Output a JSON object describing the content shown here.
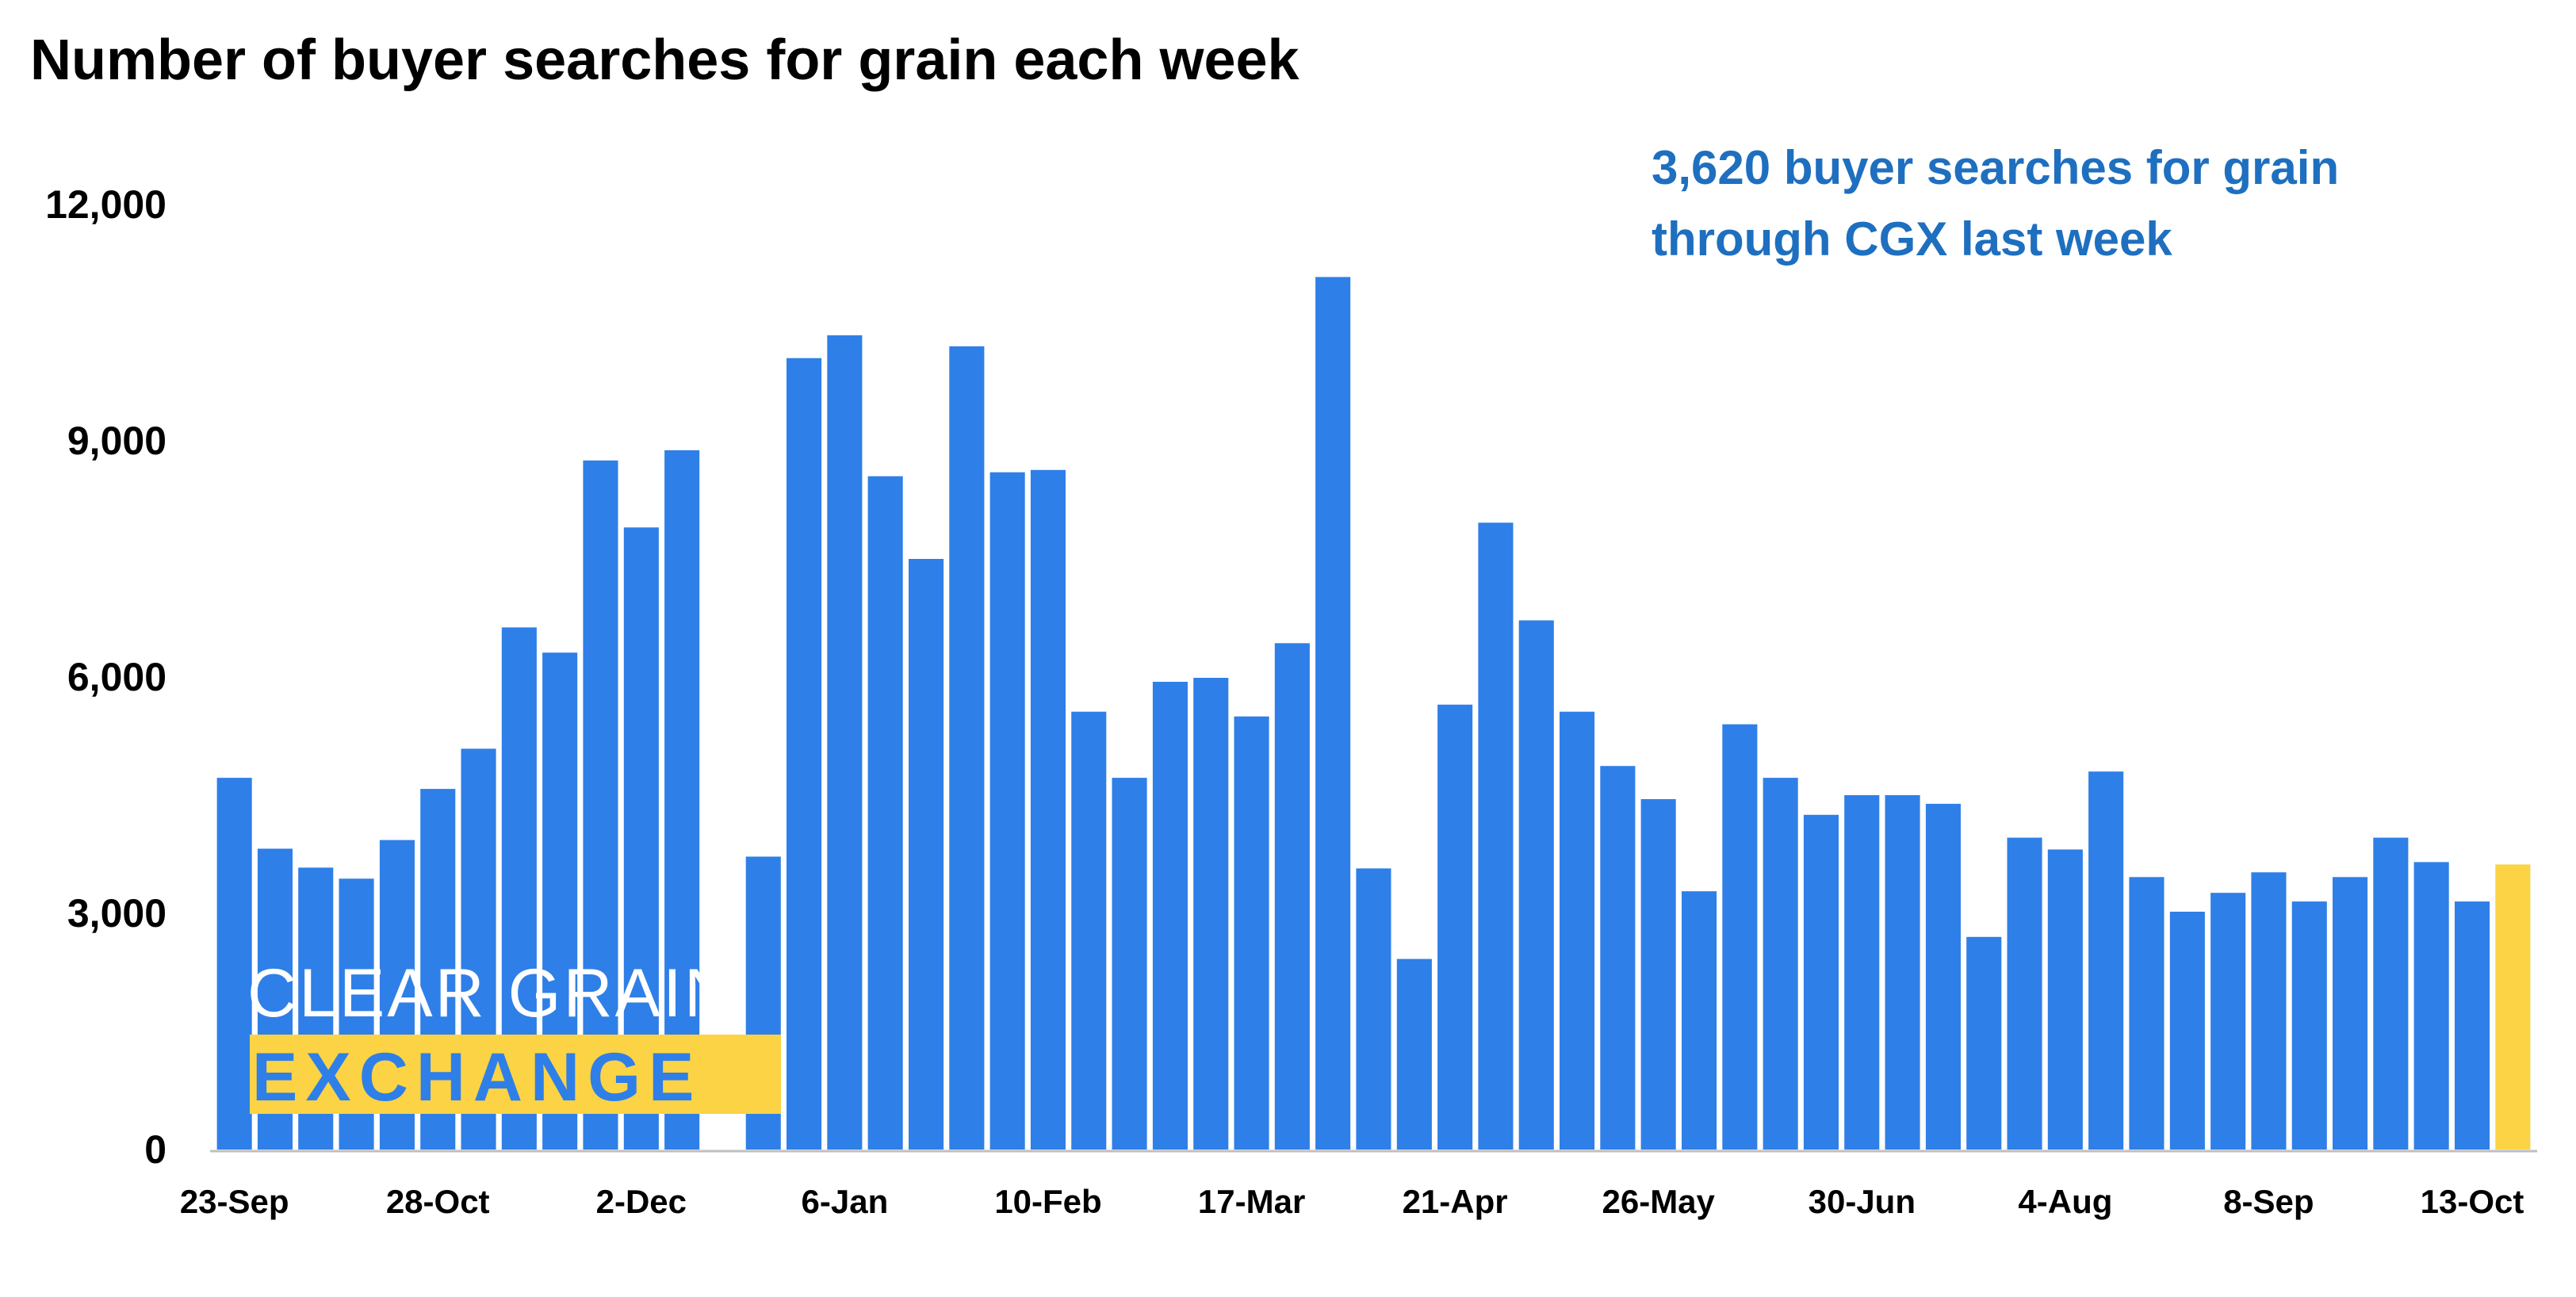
{
  "chart_data": {
    "type": "bar",
    "title": "Number of buyer searches for grain each week",
    "xlabel": "",
    "ylabel": "",
    "ylim": [
      0,
      12000
    ],
    "yticks": [
      0,
      3000,
      6000,
      9000,
      12000
    ],
    "ytick_labels": [
      "0",
      "3,000",
      "6,000",
      "9,000",
      "12,000"
    ],
    "xtick_labels": [
      {
        "index": 0,
        "label": "23-Sep"
      },
      {
        "index": 5,
        "label": "28-Oct"
      },
      {
        "index": 10,
        "label": "2-Dec"
      },
      {
        "index": 15,
        "label": "6-Jan"
      },
      {
        "index": 20,
        "label": "10-Feb"
      },
      {
        "index": 25,
        "label": "17-Mar"
      },
      {
        "index": 30,
        "label": "21-Apr"
      },
      {
        "index": 35,
        "label": "26-May"
      },
      {
        "index": 40,
        "label": "30-Jun"
      },
      {
        "index": 45,
        "label": "4-Aug"
      },
      {
        "index": 50,
        "label": "8-Sep"
      },
      {
        "index": 55,
        "label": "13-Oct"
      }
    ],
    "values": [
      4720,
      3820,
      3580,
      3440,
      3930,
      4580,
      5090,
      6630,
      6310,
      8750,
      7900,
      8880,
      0,
      3720,
      10050,
      10340,
      8550,
      7500,
      10200,
      8600,
      8630,
      5560,
      4720,
      5940,
      5990,
      5500,
      6430,
      11080,
      3570,
      2420,
      5650,
      7960,
      6720,
      5560,
      4870,
      4450,
      3280,
      5400,
      4720,
      4250,
      4500,
      4500,
      4390,
      2700,
      3960,
      3810,
      4800,
      3460,
      3020,
      3260,
      3520,
      3150,
      3460,
      3960,
      3650,
      3150,
      3620
    ],
    "highlight_index": 56,
    "grid": false,
    "legend": "none",
    "annotation": [
      "3,620 buyer searches for grain",
      "through CGX last week"
    ],
    "logo": {
      "line1": "CLEAR GRAIN",
      "line2": "EXCHANGE"
    },
    "colors": {
      "bar": "#2f7fe8",
      "highlight": "#fbd344",
      "annotation": "#1e6fbf",
      "axis": "#bfbfbf",
      "logo_band": "#fbd344",
      "logo_text2": "#2f7fe8"
    }
  }
}
